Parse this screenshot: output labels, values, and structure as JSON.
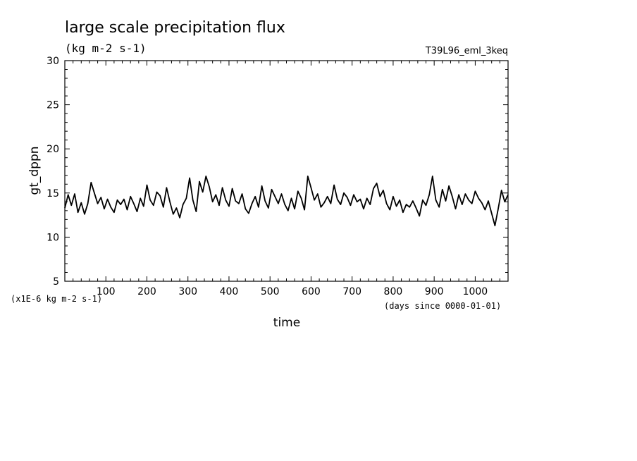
{
  "chart_data": {
    "type": "line",
    "title": "large scale precipitation flux",
    "units": "(kg m-2 s-1)",
    "experiment": "T39L96_eml_3keq",
    "ylabel": "gt_dppn",
    "xlabel": "time",
    "y_scale_note": "(x1E-6 kg m-2 s-1)",
    "x_unit_note": "(days since 0000-01-01)",
    "xlim": [
      0,
      1080
    ],
    "ylim": [
      5,
      30
    ],
    "x_ticks": [
      100,
      200,
      300,
      400,
      500,
      600,
      700,
      800,
      900,
      1000
    ],
    "y_ticks": [
      5,
      10,
      15,
      20,
      25,
      30
    ],
    "line_color": "#000000",
    "series": [
      {
        "x": [
          0,
          8,
          16,
          24,
          32,
          40,
          48,
          56,
          64,
          72,
          80,
          88,
          96,
          104,
          112,
          120,
          128,
          136,
          144,
          152,
          160,
          168,
          176,
          184,
          192,
          200,
          208,
          216,
          224,
          232,
          240,
          248,
          256,
          264,
          272,
          280,
          288,
          296,
          304,
          312,
          320,
          328,
          336,
          344,
          352,
          360,
          368,
          376,
          384,
          392,
          400,
          408,
          416,
          424,
          432,
          440,
          448,
          456,
          464,
          472,
          480,
          488,
          496,
          504,
          512,
          520,
          528,
          536,
          544,
          552,
          560,
          568,
          576,
          584,
          592,
          600,
          608,
          616,
          624,
          632,
          640,
          648,
          656,
          664,
          672,
          680,
          688,
          696,
          704,
          712,
          720,
          728,
          736,
          744,
          752,
          760,
          768,
          776,
          784,
          792,
          800,
          808,
          816,
          824,
          832,
          840,
          848,
          856,
          864,
          872,
          880,
          888,
          896,
          904,
          912,
          920,
          928,
          936,
          944,
          952,
          960,
          968,
          976,
          984,
          992,
          1000,
          1008,
          1016,
          1024,
          1032,
          1040,
          1048,
          1056,
          1064,
          1072,
          1080
        ],
        "values": [
          13.3,
          14.8,
          13.6,
          14.9,
          12.8,
          13.9,
          12.6,
          13.8,
          16.2,
          15.0,
          13.8,
          14.5,
          13.2,
          14.3,
          13.4,
          12.8,
          14.2,
          13.7,
          14.3,
          13.1,
          14.6,
          13.8,
          12.9,
          14.4,
          13.5,
          15.9,
          14.2,
          13.6,
          15.1,
          14.7,
          13.4,
          15.6,
          14.0,
          12.6,
          13.3,
          12.2,
          13.7,
          14.4,
          16.7,
          14.2,
          12.9,
          16.3,
          15.1,
          16.9,
          15.7,
          14.0,
          14.8,
          13.6,
          15.6,
          14.2,
          13.5,
          15.5,
          14.1,
          13.8,
          14.9,
          13.2,
          12.7,
          13.8,
          14.6,
          13.4,
          15.8,
          14.1,
          13.3,
          15.4,
          14.6,
          13.8,
          14.9,
          13.7,
          13.0,
          14.4,
          13.2,
          15.2,
          14.4,
          13.1,
          16.9,
          15.6,
          14.2,
          14.9,
          13.4,
          13.9,
          14.6,
          13.8,
          15.9,
          14.3,
          13.7,
          15.0,
          14.5,
          13.6,
          14.8,
          14.0,
          14.3,
          13.2,
          14.4,
          13.7,
          15.5,
          16.1,
          14.6,
          15.3,
          13.8,
          13.1,
          14.6,
          13.5,
          14.2,
          12.8,
          13.7,
          13.4,
          14.1,
          13.3,
          12.4,
          14.2,
          13.6,
          14.8,
          16.9,
          14.2,
          13.4,
          15.4,
          14.1,
          15.8,
          14.6,
          13.2,
          14.8,
          13.7,
          14.9,
          14.2,
          13.8,
          15.2,
          14.4,
          13.9,
          13.1,
          14.1,
          12.7,
          11.3,
          13.2,
          15.3,
          14.0,
          14.8
        ]
      }
    ]
  }
}
